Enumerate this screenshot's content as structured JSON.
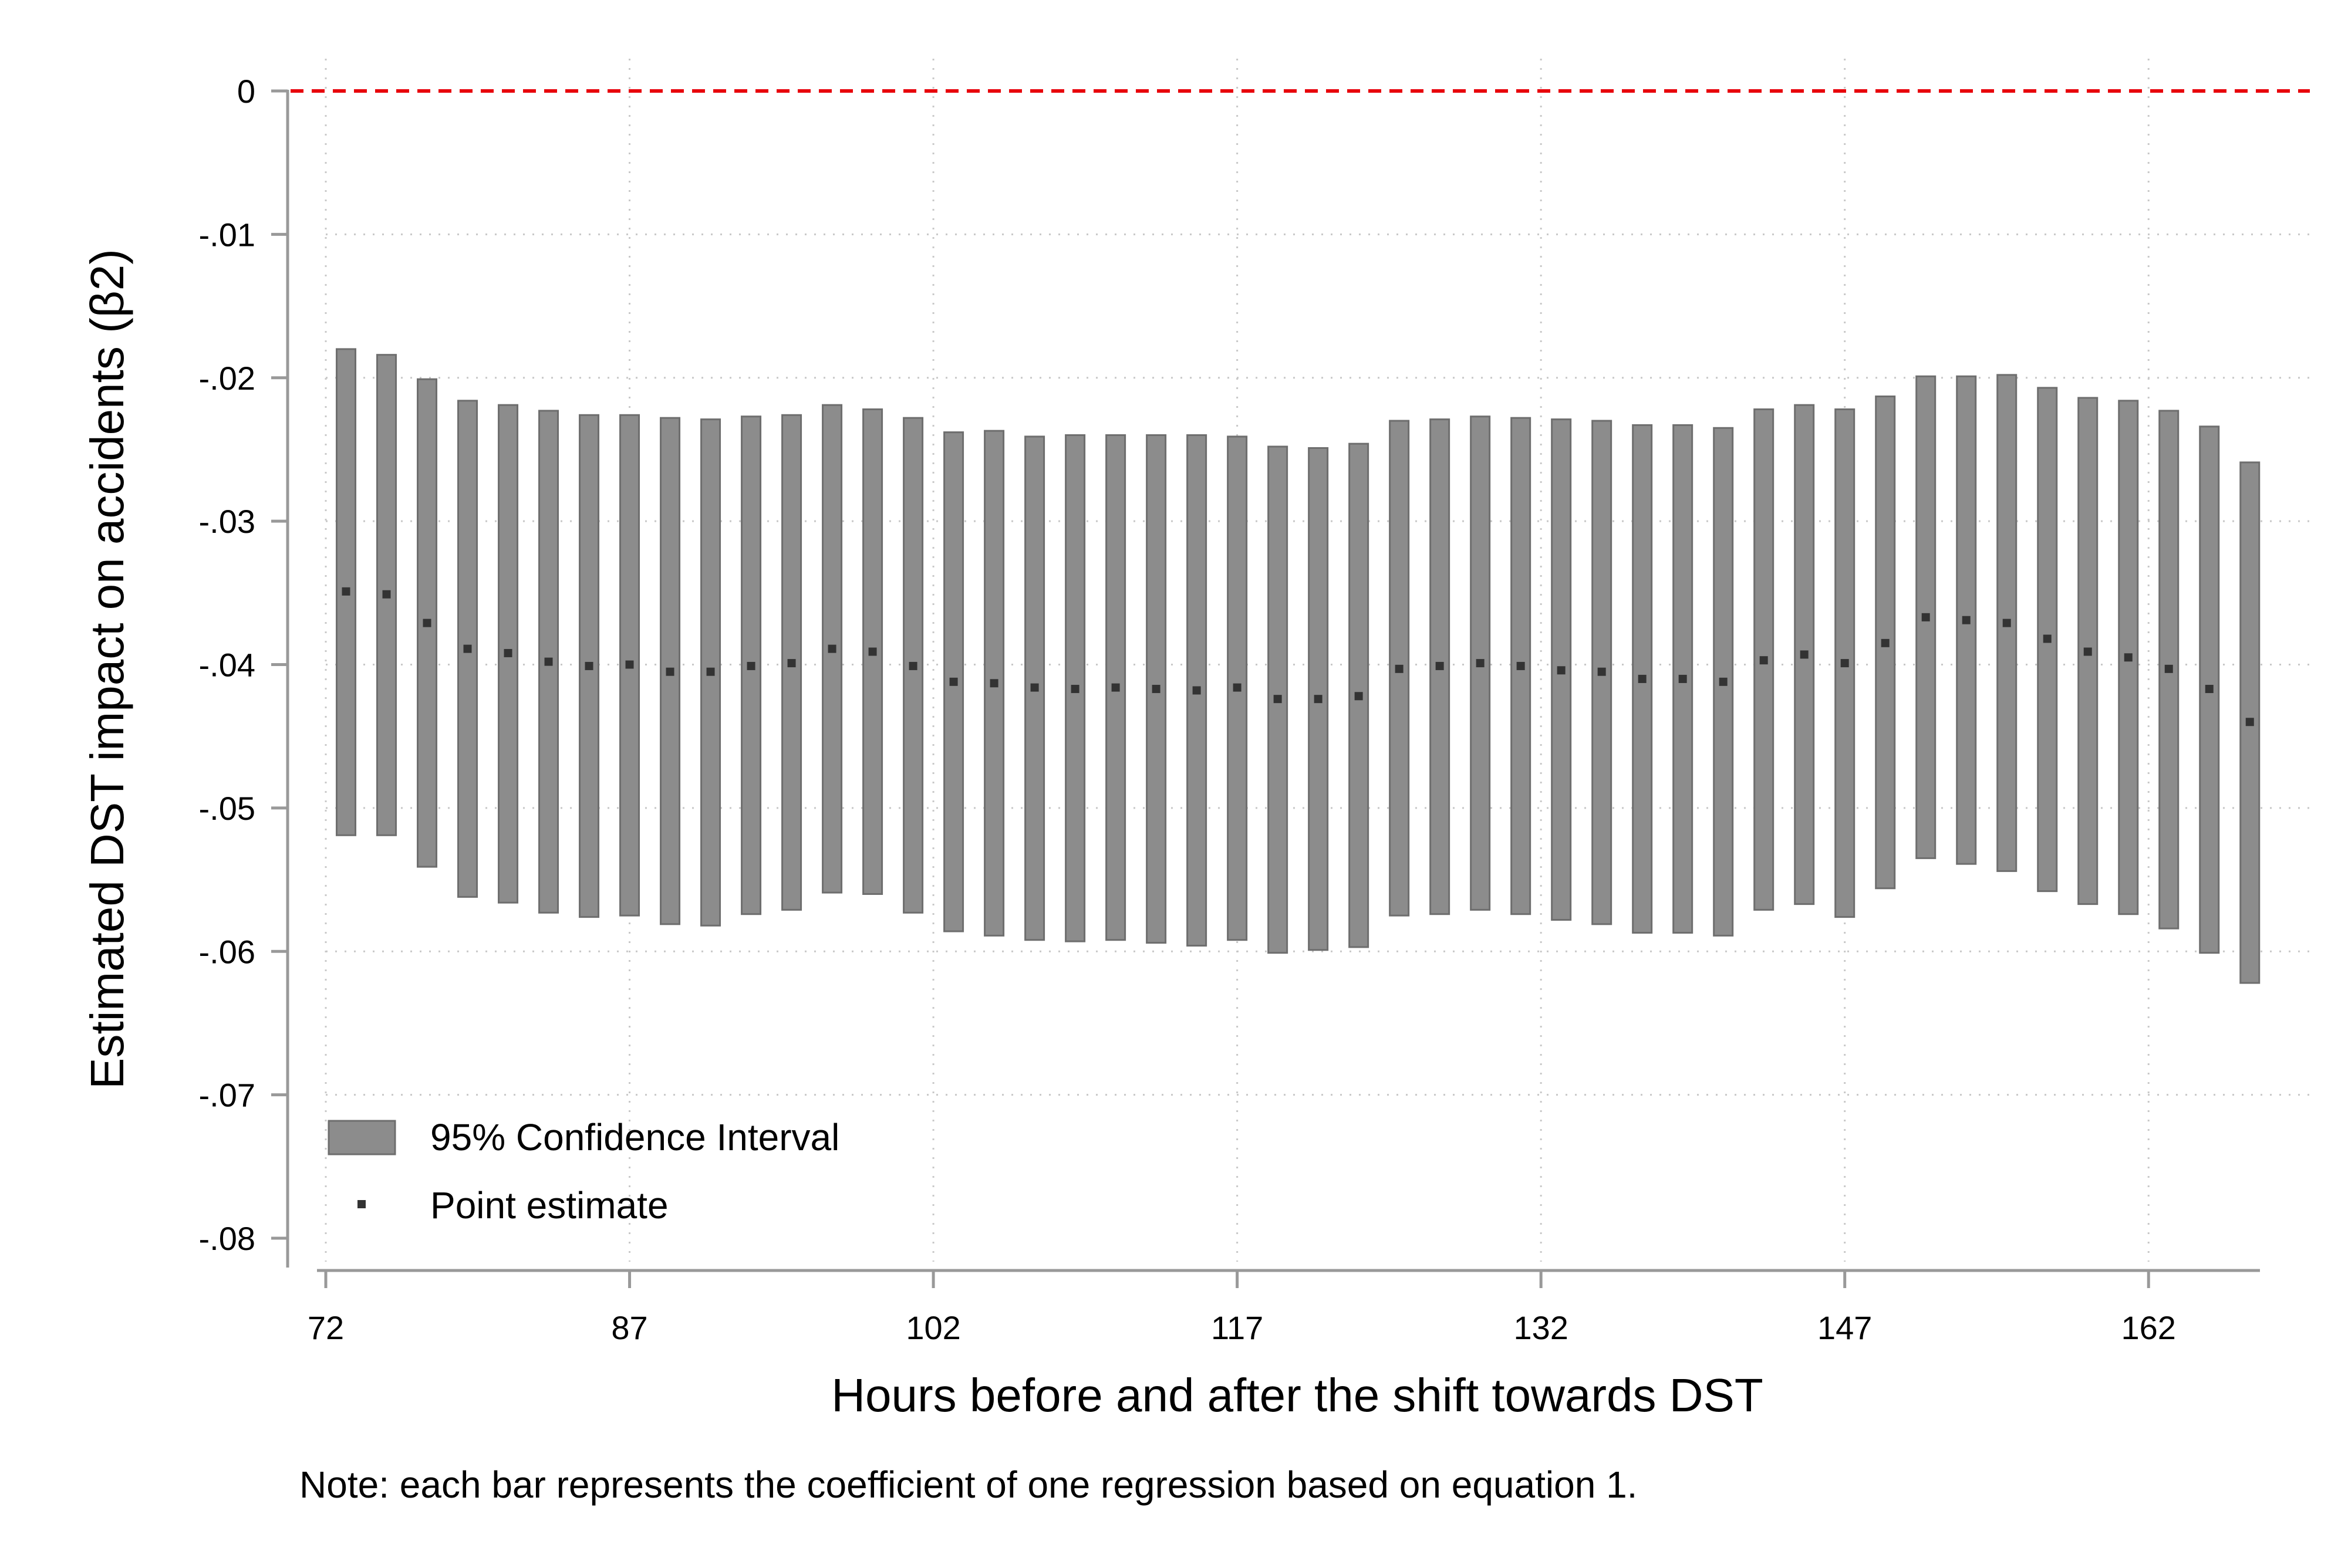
{
  "chart_data": {
    "type": "bar",
    "subtype": "range-bar with point estimates",
    "xlabel": "Hours before and after the shift towards DST",
    "ylabel": "Estimated DST impact on accidents (β2)",
    "note": "Note: each bar represents the coefficient of one regression based on equation 1.",
    "xlim": [
      72,
      167.5
    ],
    "ylim": [
      -0.08,
      0
    ],
    "x_ticks": [
      72,
      87,
      102,
      117,
      132,
      147,
      162
    ],
    "y_ticks": [
      0,
      -0.01,
      -0.02,
      -0.03,
      -0.04,
      -0.05,
      -0.06,
      -0.07,
      -0.08
    ],
    "y_tick_labels": [
      "0",
      "-.01",
      "-.02",
      "-.03",
      "-.04",
      "-.05",
      "-.06",
      "-.07",
      "-.08"
    ],
    "grid": true,
    "reference_line": {
      "y": 0,
      "style": "dashed",
      "color": "#e8000b"
    },
    "legend": {
      "placement": "bottom-left",
      "entries": [
        "95% Confidence Interval",
        "Point estimate"
      ]
    },
    "x": [
      73,
      74,
      75,
      76,
      77,
      78,
      79,
      80,
      81,
      82,
      83,
      84,
      85,
      86,
      87,
      88,
      89,
      90,
      91,
      92,
      93,
      94,
      95,
      96,
      97,
      98,
      99,
      100,
      101,
      102,
      103,
      104,
      105,
      106,
      107,
      108,
      109,
      110,
      111,
      112,
      113,
      114,
      115,
      116,
      117,
      118,
      119,
      120,
      121,
      122,
      123,
      124,
      125,
      126,
      127,
      128,
      129,
      130,
      131,
      132,
      133,
      134,
      135,
      136,
      137,
      138,
      139,
      140,
      141,
      142,
      143,
      144,
      145,
      146,
      147,
      148,
      149,
      150,
      151,
      152,
      153,
      154,
      155,
      156,
      157,
      158,
      159,
      160,
      161,
      162,
      163,
      164,
      165,
      166,
      167
    ],
    "series": [
      {
        "name": "95% Confidence Interval",
        "x": [
          73,
          75,
          77,
          79,
          81,
          83,
          85,
          87,
          89,
          91,
          93,
          95,
          97,
          99,
          101,
          103,
          105,
          107,
          109,
          111,
          113,
          115,
          117,
          119,
          121,
          123,
          125,
          127,
          129,
          131,
          133,
          135,
          137,
          139,
          141,
          143,
          145,
          147,
          149,
          151,
          153,
          155,
          157,
          159,
          161,
          163,
          165,
          167
        ],
        "upper": [
          -0.018,
          -0.0184,
          -0.0201,
          -0.0216,
          -0.0219,
          -0.0223,
          -0.0226,
          -0.0226,
          -0.0228,
          -0.0229,
          -0.0227,
          -0.0226,
          -0.0219,
          -0.0222,
          -0.0228,
          -0.0238,
          -0.0237,
          -0.0241,
          -0.024,
          -0.024,
          -0.024,
          -0.024,
          -0.0241,
          -0.0248,
          -0.0249,
          -0.0246,
          -0.023,
          -0.0229,
          -0.0227,
          -0.0228,
          -0.0229,
          -0.023,
          -0.0233,
          -0.0233,
          -0.0235,
          -0.0222,
          -0.0219,
          -0.0222,
          -0.0213,
          -0.0199,
          -0.0199,
          -0.0198,
          -0.0207,
          -0.0214,
          -0.0216,
          -0.0223,
          -0.0234,
          -0.0259
        ],
        "lower": [
          -0.0519,
          -0.0519,
          -0.0541,
          -0.0562,
          -0.0566,
          -0.0573,
          -0.0576,
          -0.0575,
          -0.0581,
          -0.0582,
          -0.0574,
          -0.0571,
          -0.0559,
          -0.056,
          -0.0573,
          -0.0586,
          -0.0589,
          -0.0592,
          -0.0593,
          -0.0592,
          -0.0594,
          -0.0596,
          -0.0592,
          -0.0601,
          -0.0599,
          -0.0597,
          -0.0575,
          -0.0574,
          -0.0571,
          -0.0574,
          -0.0578,
          -0.0581,
          -0.0587,
          -0.0587,
          -0.0589,
          -0.0571,
          -0.0567,
          -0.0576,
          -0.0556,
          -0.0535,
          -0.0539,
          -0.0544,
          -0.0558,
          -0.0567,
          -0.0574,
          -0.0584,
          -0.0601,
          -0.0622
        ]
      },
      {
        "name": "Point estimate",
        "x": [
          73,
          75,
          77,
          79,
          81,
          83,
          85,
          87,
          89,
          91,
          93,
          95,
          97,
          99,
          101,
          103,
          105,
          107,
          109,
          111,
          113,
          115,
          117,
          119,
          121,
          123,
          125,
          127,
          129,
          131,
          133,
          135,
          137,
          139,
          141,
          143,
          145,
          147,
          149,
          151,
          153,
          155,
          157,
          159,
          161,
          163,
          165,
          167
        ],
        "values": [
          -0.0349,
          -0.0351,
          -0.0371,
          -0.0389,
          -0.0392,
          -0.0398,
          -0.0401,
          -0.04,
          -0.0405,
          -0.0405,
          -0.0401,
          -0.0399,
          -0.0389,
          -0.0391,
          -0.0401,
          -0.0412,
          -0.0413,
          -0.0416,
          -0.0417,
          -0.0416,
          -0.0417,
          -0.0418,
          -0.0416,
          -0.0424,
          -0.0424,
          -0.0422,
          -0.0403,
          -0.0401,
          -0.0399,
          -0.0401,
          -0.0404,
          -0.0405,
          -0.041,
          -0.041,
          -0.0412,
          -0.0397,
          -0.0393,
          -0.0399,
          -0.0385,
          -0.0367,
          -0.0369,
          -0.0371,
          -0.0382,
          -0.0391,
          -0.0395,
          -0.0403,
          -0.0417,
          -0.044
        ]
      }
    ],
    "colors": {
      "bar_fill": "#8c8c8c",
      "bar_stroke": "#6e6e6e",
      "point": "#333333",
      "grid": "#c8c8c8",
      "axis": "#999999",
      "reference_line": "#e8000b"
    }
  }
}
